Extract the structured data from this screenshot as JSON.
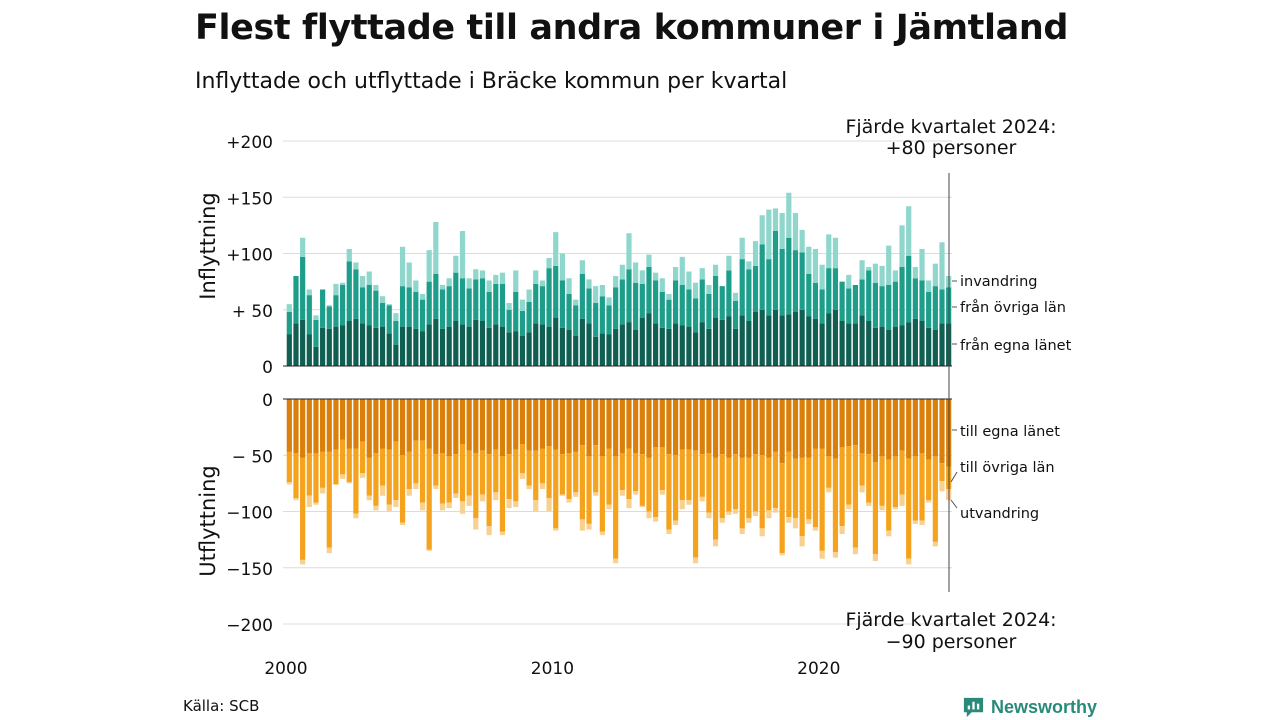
{
  "title": "Flest flyttade till andra kommuner i Jämtland",
  "subtitle": "Inflyttade och utflyttade i Bräcke kommun per kvartal",
  "source": "Källa: SCB",
  "brand": "Newsworthy",
  "colors": {
    "in_local": "#0f5f52",
    "in_other": "#1d9e8b",
    "in_immigration": "#8fd6cc",
    "out_local": "#d97f0a",
    "out_other": "#f5a21c",
    "out_emigration": "#f8d191",
    "brand": "#2a8a7a"
  },
  "chart_data": {
    "type": "bar",
    "stacked": true,
    "x_range": [
      "2000",
      "2024"
    ],
    "x_ticks": [
      "2000",
      "2010",
      "2020"
    ],
    "categories_start": "2000 Q1",
    "categories_count": 100,
    "top_panel": {
      "ylabel": "Inflyttning",
      "ylim": [
        0,
        200
      ],
      "y_ticks": [
        "0",
        "+ 50",
        "+100",
        "+150",
        "+200"
      ],
      "annotation": [
        "Fjärde kvartalet 2024:",
        "+80 personer"
      ],
      "series": [
        {
          "name": "från egna länet",
          "values": [
            28,
            38,
            41,
            28,
            17,
            34,
            33,
            35,
            36,
            40,
            42,
            38,
            36,
            34,
            35,
            29,
            19,
            35,
            35,
            33,
            31,
            37,
            42,
            33,
            35,
            40,
            37,
            35,
            41,
            40,
            34,
            37,
            35,
            30,
            31,
            27,
            30,
            38,
            37,
            35,
            43,
            34,
            32,
            27,
            42,
            38,
            26,
            29,
            28,
            33,
            37,
            39,
            32,
            43,
            47,
            38,
            34,
            33,
            38,
            36,
            35,
            30,
            39,
            33,
            43,
            41,
            44,
            33,
            45,
            40,
            48,
            50,
            45,
            50,
            45,
            46,
            48,
            50,
            44,
            42,
            38,
            47,
            50,
            40,
            38,
            38,
            45,
            40,
            34,
            35,
            32,
            35,
            36,
            39,
            42,
            40,
            34,
            32,
            38,
            38
          ]
        },
        {
          "name": "från övriga län",
          "values": [
            20,
            42,
            56,
            35,
            24,
            34,
            20,
            28,
            36,
            53,
            44,
            32,
            36,
            33,
            21,
            25,
            21,
            36,
            35,
            33,
            28,
            38,
            40,
            35,
            36,
            43,
            41,
            34,
            36,
            38,
            32,
            36,
            38,
            20,
            35,
            22,
            27,
            35,
            34,
            52,
            46,
            42,
            32,
            27,
            40,
            31,
            30,
            33,
            26,
            37,
            40,
            47,
            42,
            30,
            41,
            38,
            32,
            26,
            38,
            36,
            33,
            30,
            38,
            31,
            37,
            30,
            41,
            25,
            50,
            46,
            41,
            58,
            50,
            70,
            59,
            68,
            55,
            51,
            38,
            32,
            30,
            40,
            37,
            35,
            31,
            34,
            32,
            45,
            40,
            36,
            40,
            40,
            52,
            59,
            36,
            36,
            32,
            39,
            30,
            32
          ]
        },
        {
          "name": "invandring",
          "values": [
            7,
            0,
            17,
            5,
            4,
            0,
            1,
            10,
            2,
            11,
            6,
            10,
            12,
            5,
            6,
            1,
            7,
            35,
            22,
            10,
            5,
            28,
            46,
            4,
            7,
            15,
            42,
            9,
            9,
            7,
            10,
            8,
            10,
            6,
            19,
            10,
            11,
            12,
            5,
            9,
            30,
            24,
            14,
            5,
            12,
            8,
            15,
            10,
            7,
            10,
            13,
            32,
            18,
            12,
            11,
            7,
            12,
            5,
            12,
            25,
            16,
            14,
            10,
            8,
            10,
            0,
            13,
            7,
            19,
            7,
            22,
            26,
            44,
            20,
            32,
            40,
            33,
            20,
            24,
            30,
            22,
            30,
            27,
            0,
            12,
            0,
            17,
            3,
            17,
            18,
            35,
            10,
            37,
            44,
            10,
            28,
            10,
            20,
            42,
            10
          ]
        }
      ],
      "labels": [
        "invandring",
        "från övriga län",
        "från egna länet"
      ]
    },
    "bottom_panel": {
      "ylabel": "Utflyttning",
      "ylim": [
        -200,
        0
      ],
      "y_ticks": [
        "0",
        "− 50",
        "−100",
        "−150",
        "−200"
      ],
      "annotation": [
        "Fjärde kvartalet 2024:",
        "−90 personer"
      ],
      "series": [
        {
          "name": "till egna länet",
          "values": [
            -47,
            -48,
            -52,
            -48,
            -48,
            -47,
            -47,
            -45,
            -36,
            -44,
            -44,
            -38,
            -52,
            -48,
            -44,
            -45,
            -38,
            -50,
            -47,
            -37,
            -37,
            -44,
            -49,
            -48,
            -51,
            -49,
            -40,
            -46,
            -48,
            -46,
            -49,
            -45,
            -51,
            -49,
            -45,
            -40,
            -46,
            -46,
            -44,
            -42,
            -45,
            -49,
            -48,
            -47,
            -41,
            -51,
            -41,
            -51,
            -44,
            -51,
            -48,
            -44,
            -48,
            -49,
            -52,
            -43,
            -43,
            -49,
            -50,
            -45,
            -45,
            -46,
            -49,
            -48,
            -52,
            -49,
            -52,
            -49,
            -52,
            -52,
            -49,
            -50,
            -52,
            -47,
            -57,
            -47,
            -53,
            -52,
            -52,
            -44,
            -44,
            -51,
            -53,
            -43,
            -42,
            -41,
            -48,
            -49,
            -56,
            -51,
            -54,
            -51,
            -46,
            -53,
            -51,
            -48,
            -54,
            -51,
            -57,
            -60
          ]
        },
        {
          "name": "till övriga län",
          "values": [
            -27,
            -40,
            -91,
            -38,
            -44,
            -32,
            -85,
            -31,
            -31,
            -30,
            -58,
            -28,
            -34,
            -47,
            -33,
            -49,
            -52,
            -60,
            -33,
            -38,
            -55,
            -90,
            -28,
            -45,
            -41,
            -35,
            -51,
            -40,
            -58,
            -39,
            -64,
            -38,
            -67,
            -40,
            -46,
            -26,
            -31,
            -44,
            -31,
            -46,
            -70,
            -36,
            -41,
            -36,
            -66,
            -60,
            -42,
            -67,
            -50,
            -91,
            -33,
            -45,
            -34,
            -46,
            -48,
            -62,
            -38,
            -67,
            -58,
            -45,
            -45,
            -95,
            -38,
            -53,
            -73,
            -57,
            -48,
            -49,
            -63,
            -54,
            -51,
            -65,
            -47,
            -50,
            -80,
            -58,
            -53,
            -70,
            -55,
            -70,
            -91,
            -28,
            -83,
            -70,
            -52,
            -91,
            -29,
            -43,
            -82,
            -44,
            -63,
            -45,
            -39,
            -89,
            -57,
            -60,
            -36,
            -76,
            -16,
            -20
          ]
        },
        {
          "name": "utvandring",
          "values": [
            -2,
            -2,
            -4,
            -10,
            -2,
            -5,
            -5,
            0,
            -4,
            -1,
            -4,
            -4,
            -4,
            -4,
            -9,
            -6,
            -6,
            -2,
            -6,
            -5,
            -7,
            -1,
            -3,
            -6,
            -5,
            -4,
            -11,
            -9,
            -10,
            -6,
            -8,
            -7,
            -3,
            -8,
            -5,
            -5,
            -3,
            -10,
            -5,
            -12,
            -2,
            -1,
            -3,
            -4,
            -10,
            -5,
            -3,
            -3,
            -4,
            -4,
            -5,
            -8,
            -3,
            -1,
            -6,
            -4,
            -4,
            -4,
            -4,
            -8,
            -4,
            -5,
            -4,
            -5,
            -6,
            -4,
            -3,
            -4,
            -5,
            -4,
            -4,
            -7,
            -7,
            -4,
            -2,
            -5,
            -9,
            -9,
            -4,
            -3,
            -7,
            -4,
            -5,
            -7,
            -4,
            -6,
            -6,
            -3,
            -6,
            -4,
            -5,
            -2,
            -10,
            -5,
            -3,
            -4,
            -2,
            -4,
            -9,
            -10
          ]
        }
      ],
      "labels": [
        "till egna länet",
        "till övriga län",
        "utvandring"
      ]
    }
  }
}
